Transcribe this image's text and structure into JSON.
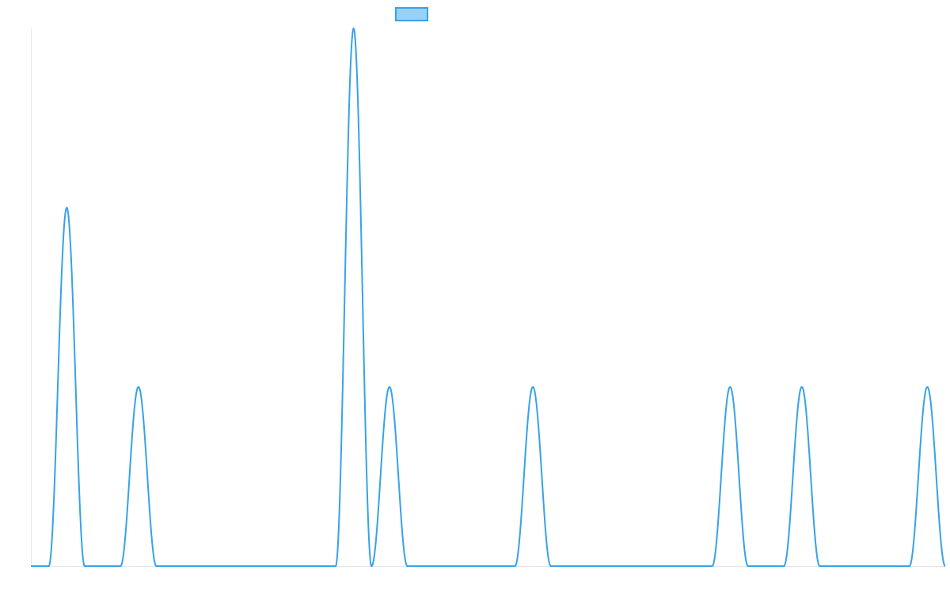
{
  "chart_data": {
    "type": "area",
    "title": "",
    "xlabel": "",
    "ylabel": "",
    "grid": false,
    "legend": {
      "position": "top-center",
      "entries": [
        {
          "label": ""
        }
      ]
    },
    "series": [
      {
        "name": "",
        "color": "#36a2eb",
        "fill_color": "#9ad0f5",
        "peaks": [
          {
            "x": 1,
            "y": 2
          },
          {
            "x": 3,
            "y": 1
          },
          {
            "x": 9,
            "y": 3
          },
          {
            "x": 10,
            "y": 1
          },
          {
            "x": 14,
            "y": 1
          },
          {
            "x": 19.5,
            "y": 1
          },
          {
            "x": 21.5,
            "y": 1
          },
          {
            "x": 25,
            "y": 1
          }
        ]
      }
    ],
    "xlim": [
      0,
      25.5
    ],
    "ylim": [
      0,
      3
    ]
  }
}
